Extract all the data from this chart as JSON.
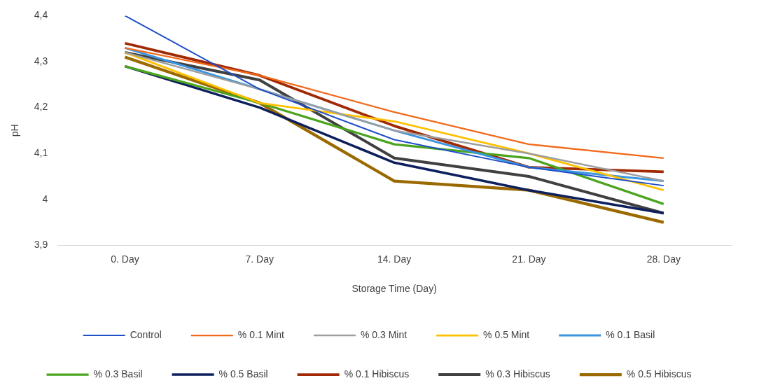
{
  "chart_data": {
    "type": "line",
    "xlabel": "Storage Time (Day)",
    "ylabel": "pH",
    "categories": [
      "0. Day",
      "7. Day",
      "14. Day",
      "21. Day",
      "28. Day"
    ],
    "ylim": [
      3.9,
      4.4
    ],
    "yticks": [
      {
        "value": 3.9,
        "label": "3,9"
      },
      {
        "value": 4,
        "label": "4"
      },
      {
        "value": 4.1,
        "label": "4,1"
      },
      {
        "value": 4.2,
        "label": "4,2"
      },
      {
        "value": 4.3,
        "label": "4,3"
      },
      {
        "value": 4.4,
        "label": "4,4"
      }
    ],
    "grid": false,
    "legend": "bottom",
    "marker": "none",
    "line_style": "solid",
    "series": [
      {
        "name": "Control",
        "color": "#1f4fc8",
        "values": [
          4.4,
          4.24,
          4.13,
          4.07,
          4.03
        ]
      },
      {
        "name": "% 0.1 Mint",
        "color": "#f26a1b",
        "values": [
          4.33,
          4.27,
          4.19,
          4.12,
          4.09
        ]
      },
      {
        "name": "% 0.3 Mint",
        "color": "#9e9e9e",
        "values": [
          4.32,
          4.24,
          4.15,
          4.1,
          4.04
        ]
      },
      {
        "name": "% 0.5 Mint",
        "color": "#ffc000",
        "values": [
          4.32,
          4.21,
          4.17,
          4.1,
          4.02
        ]
      },
      {
        "name": "% 0.1 Basil",
        "color": "#3a95e0",
        "values": [
          4.33,
          4.24,
          4.15,
          4.07,
          4.04
        ]
      },
      {
        "name": "% 0.3 Basil",
        "color": "#4aa41e",
        "values": [
          4.29,
          4.21,
          4.12,
          4.09,
          3.99
        ]
      },
      {
        "name": "% 0.5 Basil",
        "color": "#0d1f5c",
        "values": [
          4.29,
          4.2,
          4.08,
          4.02,
          3.97
        ]
      },
      {
        "name": "% 0.1 Hibiscus",
        "color": "#a02a05",
        "values": [
          4.34,
          4.27,
          4.16,
          4.07,
          4.06
        ]
      },
      {
        "name": "% 0.3 Hibiscus",
        "color": "#404040",
        "values": [
          4.32,
          4.26,
          4.09,
          4.05,
          3.97
        ]
      },
      {
        "name": "% 0.5 Hibiscus",
        "color": "#9a6a00",
        "values": [
          4.31,
          4.21,
          4.04,
          4.02,
          3.95
        ]
      }
    ]
  }
}
